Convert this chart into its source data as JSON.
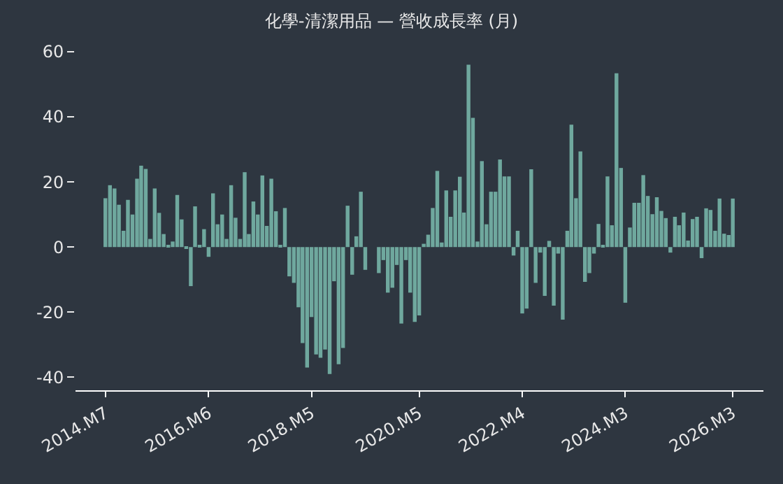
{
  "chart_data": {
    "type": "bar",
    "title": "化學-清潔用品 — 營收成長率 (月)",
    "x": [
      "2014-07",
      "2014-08",
      "2014-09",
      "2014-10",
      "2014-11",
      "2014-12",
      "2015-01",
      "2015-02",
      "2015-03",
      "2015-04",
      "2015-05",
      "2015-06",
      "2015-07",
      "2015-08",
      "2015-09",
      "2015-10",
      "2015-11",
      "2015-12",
      "2016-01",
      "2016-02",
      "2016-03",
      "2016-04",
      "2016-05",
      "2016-06",
      "2016-07",
      "2016-08",
      "2016-09",
      "2016-10",
      "2016-11",
      "2016-12",
      "2017-01",
      "2017-02",
      "2017-03",
      "2017-04",
      "2017-05",
      "2017-06",
      "2017-07",
      "2017-08",
      "2017-09",
      "2017-10",
      "2017-11",
      "2017-12",
      "2018-01",
      "2018-02",
      "2018-03",
      "2018-04",
      "2018-05",
      "2018-06",
      "2018-07",
      "2018-08",
      "2018-09",
      "2018-10",
      "2018-11",
      "2018-12",
      "2019-01",
      "2019-02",
      "2019-03",
      "2019-04",
      "2019-05",
      "2019-06",
      "2019-07",
      "2019-08",
      "2019-09",
      "2019-10",
      "2019-11",
      "2019-12",
      "2020-01",
      "2020-02",
      "2020-03",
      "2020-04",
      "2020-05",
      "2020-06",
      "2020-07",
      "2020-08",
      "2020-09",
      "2020-10",
      "2020-11",
      "2020-12",
      "2021-01",
      "2021-02",
      "2021-03",
      "2021-04",
      "2021-05",
      "2021-06",
      "2021-07",
      "2021-08",
      "2021-09",
      "2021-10",
      "2021-11",
      "2021-12",
      "2022-01",
      "2022-02",
      "2022-03",
      "2022-04",
      "2022-05",
      "2022-06",
      "2022-07",
      "2022-08",
      "2022-09",
      "2022-10",
      "2022-11",
      "2022-12",
      "2023-01",
      "2023-02",
      "2023-03",
      "2023-04",
      "2023-05",
      "2023-06",
      "2023-07",
      "2023-08",
      "2023-09",
      "2023-10",
      "2023-11",
      "2023-12",
      "2024-01",
      "2024-02",
      "2024-03",
      "2024-04",
      "2024-05",
      "2024-06",
      "2024-07",
      "2024-08",
      "2024-09",
      "2024-10",
      "2024-11",
      "2024-12",
      "2025-01",
      "2025-02",
      "2025-03",
      "2025-04",
      "2025-05",
      "2025-06",
      "2025-07",
      "2025-08",
      "2025-09",
      "2025-10",
      "2025-11",
      "2025-12",
      "2026-01",
      "2026-02",
      "2026-03"
    ],
    "values": [
      15,
      19,
      18,
      13,
      5,
      14.5,
      10,
      21,
      25,
      24,
      2.5,
      18,
      10.5,
      4,
      0.3,
      1.7,
      16,
      8.5,
      -0.5,
      -12,
      12.5,
      0.3,
      5.5,
      -3,
      16.5,
      7,
      10,
      2.5,
      19,
      9,
      2.5,
      23,
      4,
      14,
      10,
      22,
      6.5,
      21,
      11,
      0.7,
      12,
      -9,
      -11,
      -18.5,
      -29.5,
      -37,
      -21.5,
      -33,
      -34,
      -31.5,
      -39,
      -10.5,
      -36,
      -31,
      12.7,
      -8.5,
      3.3,
      17,
      -7,
      0,
      0,
      -8,
      -4,
      -14,
      -12.5,
      -5.5,
      -23.5,
      -4,
      -14,
      -23,
      -21,
      1,
      3.8,
      12,
      23.4,
      1.4,
      17.4,
      9.3,
      17.4,
      21.6,
      10.6,
      56,
      39.7,
      1.7,
      26.4,
      7,
      17,
      17,
      26.9,
      21.7,
      21.7,
      -2.6,
      5,
      -20.4,
      -18.9,
      23.9,
      -11,
      -1.7,
      -15,
      1.9,
      -18,
      -2,
      -22.3,
      5,
      37.6,
      15,
      29.4,
      -10.7,
      -8,
      -2,
      7.1,
      0.3,
      21.7,
      6.7,
      53.4,
      24.3,
      -17.1,
      6,
      13.6,
      13.6,
      22.1,
      15.7,
      10.1,
      15.3,
      11.1,
      8.9,
      -1.7,
      9.3,
      6.7,
      10.6,
      2,
      8.6,
      9.3,
      -3.4,
      11.9,
      11.4,
      5,
      14.9,
      4.1,
      3.7,
      14.9
    ],
    "color": "#6fa89e",
    "xlim": [
      "2013-12-10",
      "2026-09-25"
    ],
    "xticks": [
      {
        "value": "2014-07",
        "label": "2014.M7"
      },
      {
        "value": "2016-06",
        "label": "2016.M6"
      },
      {
        "value": "2018-05",
        "label": "2018.M5"
      },
      {
        "value": "2020-05",
        "label": "2020.M5"
      },
      {
        "value": "2022-04",
        "label": "2022.M4"
      },
      {
        "value": "2024-03",
        "label": "2024.M3"
      },
      {
        "value": "2026-03",
        "label": "2026.M3"
      }
    ],
    "ylim": [
      -44,
      60
    ],
    "yticks": [
      -40,
      -20,
      0,
      20,
      40,
      60
    ]
  }
}
